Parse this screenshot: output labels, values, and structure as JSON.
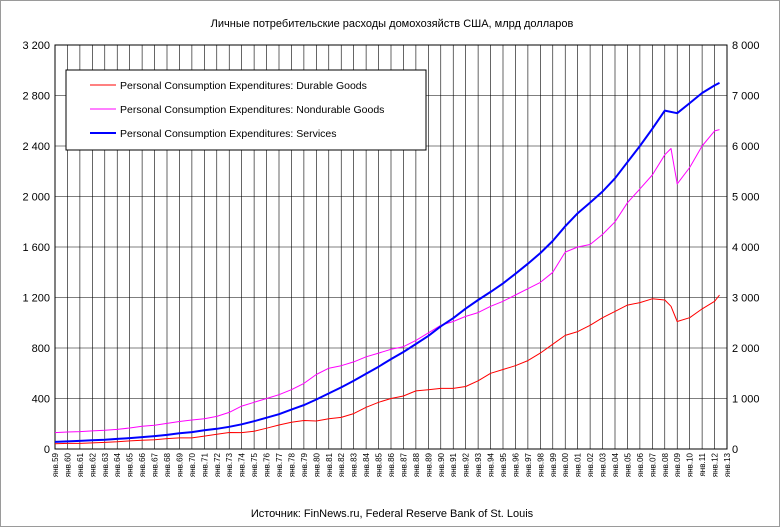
{
  "chart_data": {
    "type": "line",
    "title": "Личные потребительские расходы домохозяйств США, млрд долларов",
    "source": "Источник: FinNews.ru, Federal Reserve Bank of St. Louis",
    "grid": true,
    "legend_position": "top-left",
    "x_tick_labels": [
      "янв.59",
      "янв.60",
      "янв.61",
      "янв.62",
      "янв.63",
      "янв.64",
      "янв.65",
      "янв.66",
      "янв.67",
      "янв.68",
      "янв.69",
      "янв.70",
      "янв.71",
      "янв.72",
      "янв.73",
      "янв.74",
      "янв.75",
      "янв.76",
      "янв.77",
      "янв.78",
      "янв.79",
      "янв.80",
      "янв.81",
      "янв.82",
      "янв.83",
      "янв.84",
      "янв.85",
      "янв.86",
      "янв.87",
      "янв.88",
      "янв.89",
      "янв.90",
      "янв.91",
      "янв.92",
      "янв.93",
      "янв.94",
      "янв.95",
      "янв.96",
      "янв.97",
      "янв.98",
      "янв.99",
      "янв.00",
      "янв.01",
      "янв.02",
      "янв.03",
      "янв.04",
      "янв.05",
      "янв.06",
      "янв.07",
      "янв.08",
      "янв.09",
      "янв.10",
      "янв.11",
      "янв.12",
      "янв.13"
    ],
    "y_left": {
      "range": [
        0,
        3200
      ],
      "ticks": [
        "0",
        "400",
        "800",
        "1 200",
        "1 600",
        "2 000",
        "2 400",
        "2 800",
        "3 200"
      ]
    },
    "y_right": {
      "range": [
        0,
        8000
      ],
      "ticks": [
        "0",
        "1 000",
        "2 000",
        "3 000",
        "4 000",
        "5 000",
        "6 000",
        "7 000",
        "8 000"
      ]
    },
    "series": [
      {
        "name": "Personal Consumption Expenditures: Durable Goods",
        "color": "#ff0000",
        "axis": "left",
        "x": [
          1959,
          1960,
          1961,
          1962,
          1963,
          1964,
          1965,
          1966,
          1967,
          1968,
          1969,
          1970,
          1971,
          1972,
          1973,
          1974,
          1975,
          1976,
          1977,
          1978,
          1979,
          1980,
          1981,
          1982,
          1983,
          1984,
          1985,
          1986,
          1987,
          1988,
          1989,
          1990,
          1991,
          1992,
          1993,
          1994,
          1995,
          1996,
          1997,
          1998,
          1999,
          2000,
          2001,
          2002,
          2003,
          2004,
          2005,
          2006,
          2007,
          2008,
          2008.5,
          2009,
          2010,
          2011,
          2012,
          2012.4
        ],
        "values": [
          42,
          44,
          44,
          48,
          52,
          57,
          64,
          70,
          73,
          82,
          88,
          88,
          102,
          117,
          131,
          130,
          140,
          165,
          190,
          212,
          226,
          222,
          240,
          250,
          280,
          330,
          370,
          400,
          420,
          460,
          470,
          480,
          480,
          495,
          540,
          600,
          630,
          660,
          700,
          760,
          830,
          900,
          930,
          980,
          1040,
          1090,
          1140,
          1160,
          1190,
          1180,
          1130,
          1010,
          1040,
          1110,
          1170,
          1220
        ]
      },
      {
        "name": "Personal Consumption Expenditures: Nondurable Goods",
        "color": "#ff00ff",
        "axis": "left",
        "x": [
          1959,
          1960,
          1961,
          1962,
          1963,
          1964,
          1965,
          1966,
          1967,
          1968,
          1969,
          1970,
          1971,
          1972,
          1973,
          1974,
          1975,
          1976,
          1977,
          1978,
          1979,
          1980,
          1981,
          1982,
          1983,
          1984,
          1985,
          1986,
          1987,
          1988,
          1989,
          1990,
          1991,
          1992,
          1993,
          1994,
          1995,
          1996,
          1997,
          1998,
          1999,
          2000,
          2001,
          2002,
          2003,
          2004,
          2005,
          2006,
          2007,
          2008,
          2008.5,
          2009,
          2010,
          2011,
          2012,
          2012.4
        ],
        "values": [
          130,
          135,
          138,
          143,
          148,
          155,
          166,
          180,
          188,
          203,
          218,
          230,
          240,
          258,
          290,
          340,
          370,
          400,
          430,
          470,
          520,
          590,
          640,
          660,
          690,
          730,
          760,
          790,
          810,
          860,
          920,
          980,
          1010,
          1050,
          1080,
          1130,
          1170,
          1220,
          1270,
          1320,
          1400,
          1560,
          1600,
          1620,
          1700,
          1800,
          1950,
          2060,
          2170,
          2330,
          2380,
          2100,
          2230,
          2400,
          2520,
          2530
        ]
      },
      {
        "name": "Personal Consumption Expenditures: Services",
        "color": "#0000ff",
        "axis": "right",
        "x": [
          1959,
          1960,
          1961,
          1962,
          1963,
          1964,
          1965,
          1966,
          1967,
          1968,
          1969,
          1970,
          1971,
          1972,
          1973,
          1974,
          1975,
          1976,
          1977,
          1978,
          1979,
          1980,
          1981,
          1982,
          1983,
          1984,
          1985,
          1986,
          1987,
          1988,
          1989,
          1990,
          1991,
          1992,
          1993,
          1994,
          1995,
          1996,
          1997,
          1998,
          1999,
          2000,
          2001,
          2002,
          2003,
          2004,
          2005,
          2006,
          2007,
          2008,
          2009,
          2010,
          2011,
          2012,
          2012.4
        ],
        "values": [
          140,
          150,
          160,
          175,
          185,
          200,
          215,
          235,
          255,
          280,
          310,
          335,
          370,
          400,
          440,
          490,
          550,
          620,
          690,
          780,
          870,
          980,
          1100,
          1220,
          1350,
          1490,
          1630,
          1780,
          1920,
          2080,
          2240,
          2430,
          2590,
          2780,
          2950,
          3110,
          3280,
          3470,
          3670,
          3880,
          4120,
          4410,
          4670,
          4880,
          5100,
          5360,
          5680,
          6000,
          6340,
          6700,
          6650,
          6850,
          7050,
          7200,
          7250
        ]
      }
    ]
  }
}
